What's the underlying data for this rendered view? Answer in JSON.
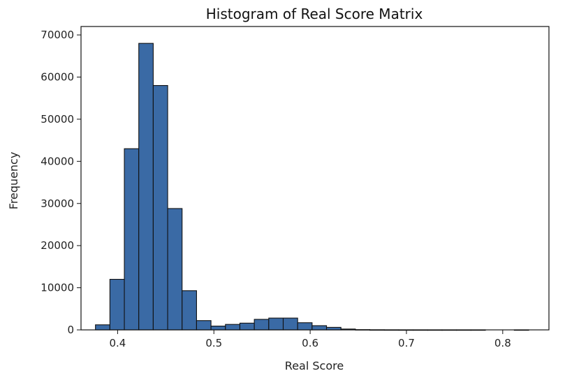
{
  "chart_data": {
    "type": "bar",
    "title": "Histogram of Real Score Matrix",
    "xlabel": "Real Score",
    "ylabel": "Frequency",
    "bar_color": "#3a6aa5",
    "edge_color": "#111111",
    "xlim": [
      0.362,
      0.848
    ],
    "ylim": [
      0,
      72000
    ],
    "x_ticks": [
      {
        "value": 0.4,
        "label": "0.4"
      },
      {
        "value": 0.5,
        "label": "0.5"
      },
      {
        "value": 0.6,
        "label": "0.6"
      },
      {
        "value": 0.7,
        "label": "0.7"
      },
      {
        "value": 0.8,
        "label": "0.8"
      }
    ],
    "y_ticks": [
      {
        "value": 0,
        "label": "0"
      },
      {
        "value": 10000,
        "label": "10000"
      },
      {
        "value": 20000,
        "label": "20000"
      },
      {
        "value": 30000,
        "label": "30000"
      },
      {
        "value": 40000,
        "label": "40000"
      },
      {
        "value": 50000,
        "label": "50000"
      },
      {
        "value": 60000,
        "label": "60000"
      },
      {
        "value": 70000,
        "label": "70000"
      }
    ],
    "bins": [
      {
        "x0": 0.377,
        "x1": 0.392,
        "value": 1200
      },
      {
        "x0": 0.392,
        "x1": 0.407,
        "value": 12000
      },
      {
        "x0": 0.407,
        "x1": 0.422,
        "value": 43000
      },
      {
        "x0": 0.422,
        "x1": 0.437,
        "value": 68000
      },
      {
        "x0": 0.437,
        "x1": 0.452,
        "value": 58000
      },
      {
        "x0": 0.452,
        "x1": 0.467,
        "value": 28800
      },
      {
        "x0": 0.467,
        "x1": 0.482,
        "value": 9300
      },
      {
        "x0": 0.482,
        "x1": 0.497,
        "value": 2200
      },
      {
        "x0": 0.497,
        "x1": 0.512,
        "value": 900
      },
      {
        "x0": 0.512,
        "x1": 0.527,
        "value": 1300
      },
      {
        "x0": 0.527,
        "x1": 0.542,
        "value": 1600
      },
      {
        "x0": 0.542,
        "x1": 0.557,
        "value": 2500
      },
      {
        "x0": 0.557,
        "x1": 0.572,
        "value": 2800
      },
      {
        "x0": 0.572,
        "x1": 0.587,
        "value": 2800
      },
      {
        "x0": 0.587,
        "x1": 0.602,
        "value": 1700
      },
      {
        "x0": 0.602,
        "x1": 0.617,
        "value": 1000
      },
      {
        "x0": 0.617,
        "x1": 0.632,
        "value": 600
      },
      {
        "x0": 0.632,
        "x1": 0.647,
        "value": 200
      },
      {
        "x0": 0.647,
        "x1": 0.662,
        "value": 60
      },
      {
        "x0": 0.662,
        "x1": 0.677,
        "value": 20
      },
      {
        "x0": 0.677,
        "x1": 0.692,
        "value": 10
      },
      {
        "x0": 0.692,
        "x1": 0.707,
        "value": 5
      },
      {
        "x0": 0.707,
        "x1": 0.722,
        "value": 3
      },
      {
        "x0": 0.722,
        "x1": 0.737,
        "value": 2
      },
      {
        "x0": 0.737,
        "x1": 0.752,
        "value": 1
      },
      {
        "x0": 0.752,
        "x1": 0.767,
        "value": 1
      },
      {
        "x0": 0.767,
        "x1": 0.782,
        "value": 1
      },
      {
        "x0": 0.782,
        "x1": 0.797,
        "value": 0
      },
      {
        "x0": 0.797,
        "x1": 0.812,
        "value": 0
      },
      {
        "x0": 0.812,
        "x1": 0.827,
        "value": 1
      }
    ]
  }
}
